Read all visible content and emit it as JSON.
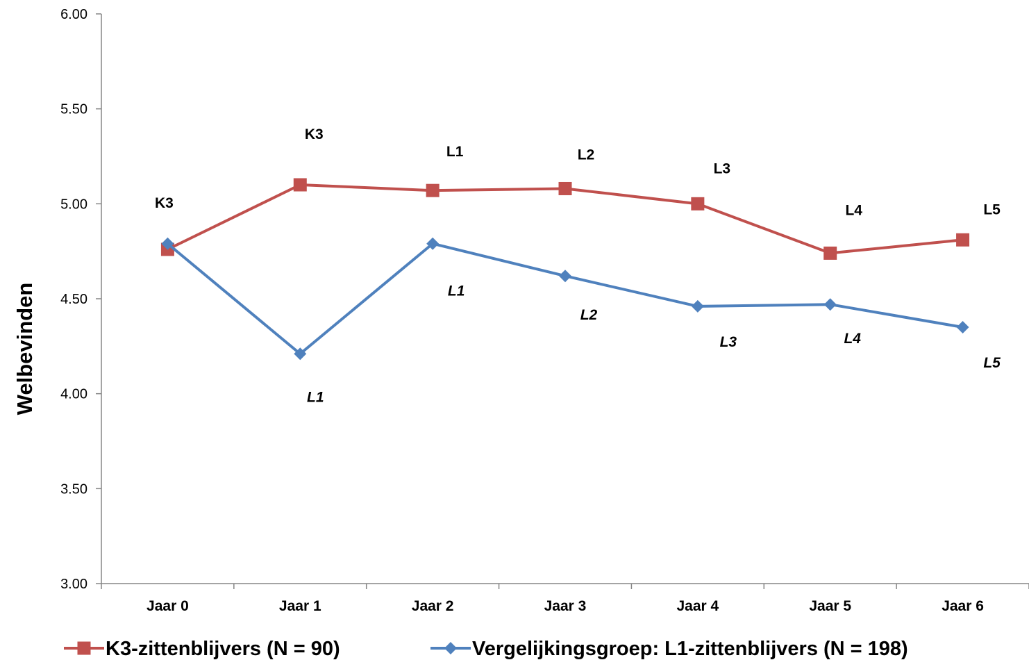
{
  "chart_data": {
    "type": "line",
    "title": "",
    "xlabel": "",
    "ylabel": "Welbevinden",
    "ylim": [
      3.0,
      6.0
    ],
    "yticks": [
      "3.00",
      "3.50",
      "4.00",
      "4.50",
      "5.00",
      "5.50",
      "6.00"
    ],
    "categories": [
      "Jaar 0",
      "Jaar 1",
      "Jaar 2",
      "Jaar 3",
      "Jaar 4",
      "Jaar 5",
      "Jaar 6"
    ],
    "grid": false,
    "legend": "bottom",
    "series": [
      {
        "name": "K3-zittenblijvers (N = 90)",
        "values": [
          4.76,
          5.1,
          5.07,
          5.08,
          5.0,
          4.74,
          4.81
        ],
        "labels": [
          "K3",
          "K3",
          "L1",
          "L2",
          "L3",
          "L4",
          "L5"
        ],
        "color": "#c0504d",
        "marker": "square",
        "label_style": "bold"
      },
      {
        "name": "Vergelijkingsgroep: L1-zittenblijvers (N = 198)",
        "values": [
          4.79,
          4.21,
          4.79,
          4.62,
          4.46,
          4.47,
          4.35
        ],
        "labels": [
          "",
          "L1",
          "L1",
          "L2",
          "L3",
          "L4",
          "L5"
        ],
        "color": "#4f81bd",
        "marker": "diamond",
        "label_style": "bold-italic"
      }
    ]
  }
}
